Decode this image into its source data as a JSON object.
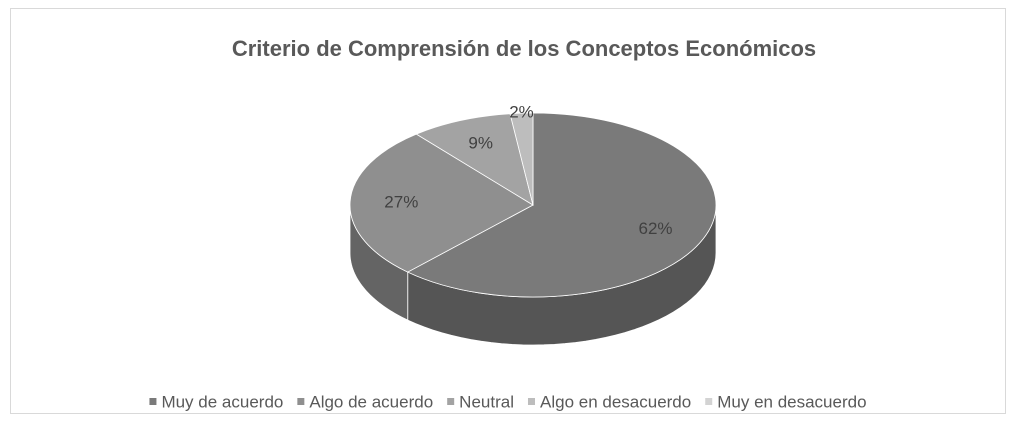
{
  "chart_data": {
    "type": "pie3d",
    "title": "Criterio de Comprensión de los Conceptos Económicos",
    "categories": [
      "Muy de acuerdo",
      "Algo de acuerdo",
      "Neutral",
      "Algo en desacuerdo",
      "Muy en desacuerdo"
    ],
    "values": [
      62,
      27,
      9,
      2,
      0
    ],
    "value_labels": [
      "62%",
      "27%",
      "9%",
      "2%",
      null
    ],
    "colors": [
      "#7a7a7a",
      "#8f8f8f",
      "#a3a3a3",
      "#bdbdbd",
      "#d3d3d3"
    ],
    "legend": "bottom"
  }
}
